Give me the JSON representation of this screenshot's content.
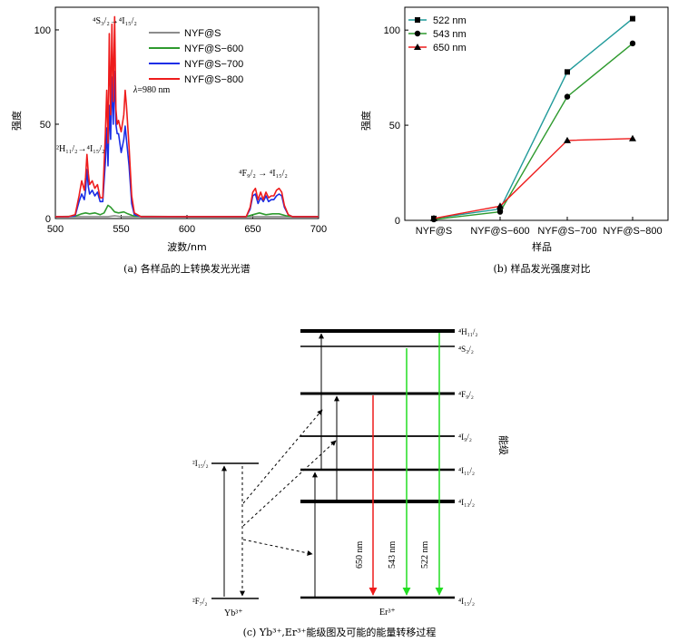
{
  "chart_data": [
    {
      "type": "line",
      "panel": "a",
      "caption": "(a) 各样品的上转换发光光谱",
      "xlabel": "波数/nm",
      "ylabel": "强度",
      "xlim": [
        500,
        700
      ],
      "ylim": [
        0,
        112
      ],
      "xticks": [
        500,
        550,
        600,
        650,
        700
      ],
      "yticks": [
        0,
        50,
        100
      ],
      "series": [
        {
          "name": "NYF@S",
          "color": "#8c8c8c",
          "points": [
            [
              500,
              1
            ],
            [
              520,
              1
            ],
            [
              540,
              1
            ],
            [
              545,
              1.5
            ],
            [
              550,
              1
            ],
            [
              600,
              1
            ],
            [
              650,
              1
            ],
            [
              700,
              1
            ]
          ]
        },
        {
          "name": "NYF@S−600",
          "color": "#2e9a2e",
          "points": [
            [
              500,
              1
            ],
            [
              515,
              1.2
            ],
            [
              520,
              2.5
            ],
            [
              523,
              3
            ],
            [
              526,
              2.5
            ],
            [
              530,
              3
            ],
            [
              534,
              2
            ],
            [
              537,
              3
            ],
            [
              540,
              7
            ],
            [
              542,
              6
            ],
            [
              545,
              3.5
            ],
            [
              548,
              3
            ],
            [
              552,
              3.5
            ],
            [
              555,
              2.5
            ],
            [
              560,
              1.2
            ],
            [
              600,
              1
            ],
            [
              645,
              1
            ],
            [
              650,
              2
            ],
            [
              655,
              3
            ],
            [
              660,
              2
            ],
            [
              665,
              2.5
            ],
            [
              670,
              2.5
            ],
            [
              675,
              1.5
            ],
            [
              680,
              1
            ],
            [
              700,
              1
            ]
          ]
        },
        {
          "name": "NYF@S−700",
          "color": "#1a2ee6",
          "points": [
            [
              500,
              1
            ],
            [
              510,
              1
            ],
            [
              515,
              1.5
            ],
            [
              518,
              9
            ],
            [
              520,
              13
            ],
            [
              522,
              10
            ],
            [
              523,
              15
            ],
            [
              524,
              26
            ],
            [
              525,
              17
            ],
            [
              526,
              13
            ],
            [
              528,
              15
            ],
            [
              530,
              12
            ],
            [
              532,
              14
            ],
            [
              534,
              9
            ],
            [
              536,
              9
            ],
            [
              538,
              30
            ],
            [
              539,
              48
            ],
            [
              540,
              28
            ],
            [
              541,
              60
            ],
            [
              542,
              42
            ],
            [
              543,
              75
            ],
            [
              544,
              50
            ],
            [
              545,
              78
            ],
            [
              546,
              50
            ],
            [
              547,
              45
            ],
            [
              548,
              45
            ],
            [
              550,
              35
            ],
            [
              552,
              42
            ],
            [
              553,
              49
            ],
            [
              554,
              42
            ],
            [
              556,
              28
            ],
            [
              558,
              8
            ],
            [
              560,
              2
            ],
            [
              565,
              1
            ],
            [
              600,
              1
            ],
            [
              645,
              1
            ],
            [
              648,
              5
            ],
            [
              650,
              12
            ],
            [
              652,
              13
            ],
            [
              654,
              8
            ],
            [
              656,
              11
            ],
            [
              658,
              9
            ],
            [
              660,
              12
            ],
            [
              662,
              9
            ],
            [
              664,
              10
            ],
            [
              666,
              10
            ],
            [
              668,
              12
            ],
            [
              670,
              13
            ],
            [
              672,
              12
            ],
            [
              674,
              6
            ],
            [
              677,
              2
            ],
            [
              680,
              1
            ],
            [
              700,
              1
            ]
          ]
        },
        {
          "name": "NYF@S−800",
          "color": "#ee1c1c",
          "points": [
            [
              500,
              1
            ],
            [
              510,
              1
            ],
            [
              515,
              2
            ],
            [
              518,
              12
            ],
            [
              520,
              20
            ],
            [
              522,
              15
            ],
            [
              523,
              22
            ],
            [
              524,
              34
            ],
            [
              525,
              24
            ],
            [
              526,
              18
            ],
            [
              528,
              20
            ],
            [
              530,
              16
            ],
            [
              532,
              18
            ],
            [
              534,
              11
            ],
            [
              536,
              11
            ],
            [
              538,
              45
            ],
            [
              539,
              68
            ],
            [
              540,
              40
            ],
            [
              541,
              98
            ],
            [
              542,
              55
            ],
            [
              543,
              103
            ],
            [
              544,
              62
            ],
            [
              545,
              107
            ],
            [
              546,
              58
            ],
            [
              547,
              50
            ],
            [
              548,
              52
            ],
            [
              550,
              46
            ],
            [
              552,
              55
            ],
            [
              553,
              68
            ],
            [
              554,
              60
            ],
            [
              556,
              38
            ],
            [
              558,
              12
            ],
            [
              560,
              3
            ],
            [
              565,
              1
            ],
            [
              600,
              1
            ],
            [
              645,
              1
            ],
            [
              648,
              6
            ],
            [
              650,
              14
            ],
            [
              652,
              16
            ],
            [
              654,
              10
            ],
            [
              656,
              14
            ],
            [
              658,
              10
            ],
            [
              660,
              14
            ],
            [
              662,
              11
            ],
            [
              664,
              12
            ],
            [
              666,
              12
            ],
            [
              668,
              15
            ],
            [
              670,
              16
            ],
            [
              672,
              14
            ],
            [
              674,
              7
            ],
            [
              677,
              2
            ],
            [
              680,
              1
            ],
            [
              700,
              1
            ]
          ]
        }
      ],
      "annotations": [
        {
          "text": "λ=980 nm",
          "x": 558,
          "y": 68
        },
        {
          "text": "⁴S₃/₂→⁴I₁₅/₂",
          "x": 530,
          "y": 102
        },
        {
          "text": "²H₁₁/₂→⁴I₁₅/₂",
          "x": 508,
          "y": 34
        },
        {
          "text": "⁴F₉/₂ → ⁴I₁₅/₂",
          "x": 655,
          "y": 22
        }
      ]
    },
    {
      "type": "line",
      "panel": "b",
      "caption": "(b) 样品发光强度对比",
      "xlabel": "样品",
      "ylabel": "强度",
      "categories": [
        "NYF@S",
        "NYF@S−600",
        "NYF@S−700",
        "NYF@S−800"
      ],
      "ylim": [
        0,
        112
      ],
      "yticks": [
        0,
        50,
        100
      ],
      "series": [
        {
          "name": "522 nm",
          "color": "#1f9a9a",
          "marker": "square",
          "values": [
            1,
            6,
            78,
            106
          ]
        },
        {
          "name": "543 nm",
          "color": "#2e9a2e",
          "marker": "circle",
          "values": [
            0.5,
            4.5,
            65,
            93
          ]
        },
        {
          "name": "650 nm",
          "color": "#ee1c1c",
          "marker": "triangle",
          "values": [
            1,
            7.5,
            42,
            43
          ]
        }
      ]
    }
  ],
  "energy_diagram": {
    "caption": "(c) Yb³⁺,Er³⁺能级图及可能的能量转移过程",
    "axis_label": "能级",
    "yb_label": "Yb³⁺",
    "er_label": "Er³⁺",
    "yb_levels": [
      {
        "label": "²I₁₅/₂",
        "name": "yb-excited"
      },
      {
        "label": "²F₇/₂",
        "name": "yb-ground"
      }
    ],
    "er_levels": [
      {
        "label": "⁴H₁₁/₂",
        "name": "er-4h11"
      },
      {
        "label": "⁴S₃/₂",
        "name": "er-4s3"
      },
      {
        "label": "⁴F₉/₂",
        "name": "er-4f9"
      },
      {
        "label": "⁴I₉/₂",
        "name": "er-4i9"
      },
      {
        "label": "⁴I₁₁/₂",
        "name": "er-4i11"
      },
      {
        "label": "⁴I₁₃/₂",
        "name": "er-4i13"
      },
      {
        "label": "⁴I₁₅/₂",
        "name": "er-4i15"
      }
    ],
    "emissions": [
      {
        "label": "650 nm",
        "color": "#ee1c1c"
      },
      {
        "label": "543 nm",
        "color": "#22dd22"
      },
      {
        "label": "522 nm",
        "color": "#22dd22"
      }
    ]
  }
}
